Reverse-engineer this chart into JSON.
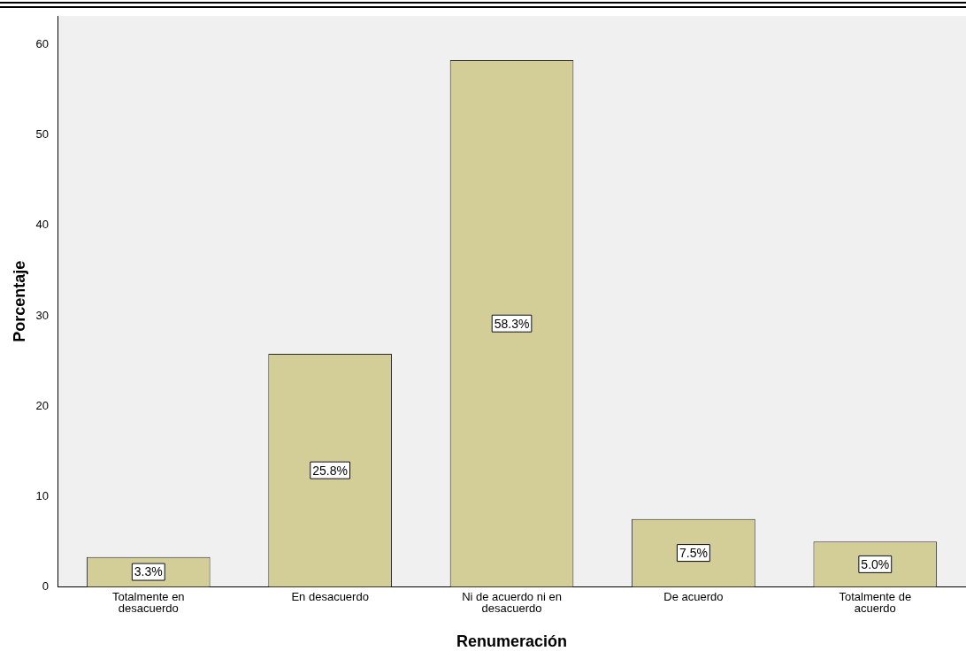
{
  "chart_data": {
    "type": "bar",
    "categories": [
      "Totalmente en desacuerdo",
      "En desacuerdo",
      "Ni de acuerdo ni en desacuerdo",
      "De acuerdo",
      "Totalmente de acuerdo"
    ],
    "values": [
      3.3,
      25.8,
      58.3,
      7.5,
      5.0
    ],
    "value_labels": [
      "3.3%",
      "25.8%",
      "58.3%",
      "7.5%",
      "5.0%"
    ],
    "color": "#d3ce97",
    "xlabel": "Renumeración",
    "ylabel": "Porcentaje",
    "ylim": [
      0,
      63.2
    ],
    "yticks": [
      0,
      10,
      20,
      30,
      40,
      50,
      60
    ],
    "grid": false,
    "legend": false
  }
}
